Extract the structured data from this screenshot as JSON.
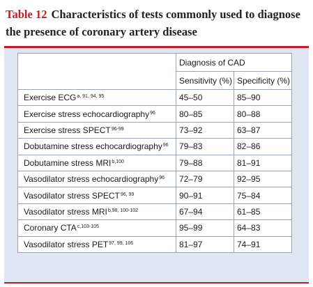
{
  "caption": {
    "label": "Table 12",
    "title": "Characteristics of tests commonly used to diagnose the presence of coronary artery disease"
  },
  "table": {
    "group_header": "Diagnosis of CAD",
    "col_sensitivity": "Sensitivity (%)",
    "col_specificity": "Specificity (%)",
    "rows": [
      {
        "test": "Exercise ECG",
        "ref": "a, 91, 94, 95",
        "sensitivity": "45–50",
        "specificity": "85–90"
      },
      {
        "test": "Exercise stress echocardiography",
        "ref": "96",
        "sensitivity": "80–85",
        "specificity": "80–88"
      },
      {
        "test": "Exercise stress SPECT",
        "ref": "96-99",
        "sensitivity": "73–92",
        "specificity": "63–87"
      },
      {
        "test": "Dobutamine stress echocardiography",
        "ref": "96",
        "sensitivity": "79–83",
        "specificity": "82–86"
      },
      {
        "test": "Dobutamine stress MRI",
        "ref": "b,100",
        "sensitivity": "79–88",
        "specificity": "81–91"
      },
      {
        "test": "Vasodilator stress echocardiography",
        "ref": "96",
        "sensitivity": "72–79",
        "specificity": "92–95"
      },
      {
        "test": "Vasodilator stress SPECT",
        "ref": "96, 99",
        "sensitivity": "90–91",
        "specificity": "75–84"
      },
      {
        "test": "Vasodilator stress MRI",
        "ref": "b,98, 100-102",
        "sensitivity": "67–94",
        "specificity": "61–85"
      },
      {
        "test": "Coronary CTA",
        "ref": "c,103-105",
        "sensitivity": "95–99",
        "specificity": "64–83"
      },
      {
        "test": "Vasodilator stress PET",
        "ref": "97, 99, 106",
        "sensitivity": "81–97",
        "specificity": "74–91"
      }
    ]
  },
  "colors": {
    "accent": "#b8202e",
    "panel": "#dfe6f1"
  }
}
